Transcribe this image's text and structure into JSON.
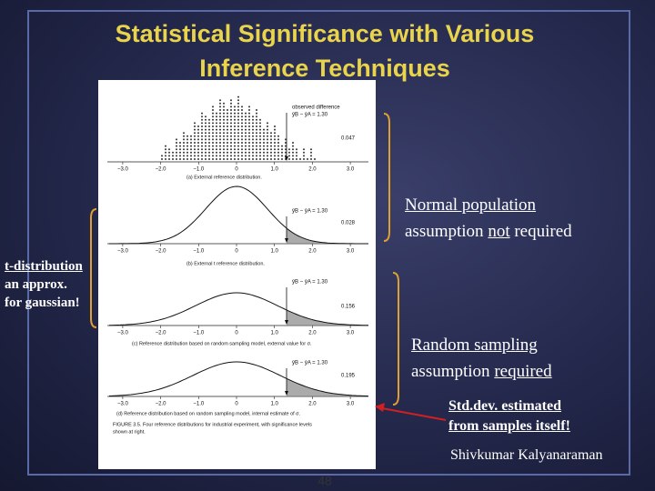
{
  "title": [
    "Statistical Significance with Various",
    "Inference Techniques"
  ],
  "figure": {
    "panels": [
      {
        "note": "observed difference",
        "difference_label": "ȳB − ȳA = 1.30",
        "significance": "0.047",
        "axis_labels": [
          "−3.0",
          "−2.0",
          "−1.0",
          "0",
          "1.0",
          "2.0",
          "3.0"
        ],
        "caption": "(a) External reference distribution."
      },
      {
        "difference_label": "ȳB − ȳA = 1.30",
        "significance": "0.028",
        "axis_labels": [
          "−3.0",
          "−2.0",
          "−1.0",
          "0",
          "1.0",
          "2.0",
          "3.0"
        ],
        "caption": "(b) External t reference distribution."
      },
      {
        "difference_label": "ȳB − ȳA = 1.30",
        "significance": "0.156",
        "axis_labels": [
          "−3.0",
          "−2.0",
          "−1.0",
          "0",
          "1.0",
          "2.0",
          "3.0"
        ],
        "caption": "(c) Reference distribution based on random sampling model, external value for σ."
      },
      {
        "difference_label": "ȳB − ȳA = 1.30",
        "significance": "0.195",
        "axis_labels": [
          "−3.0",
          "−2.0",
          "−1.0",
          "0",
          "1.0",
          "2.0",
          "3.0"
        ],
        "caption": "(d) Reference distribution based on random sampling model, internal estimate of σ."
      }
    ],
    "caption": [
      "FIGURE 3.5. Four reference distributions for industrial experiment, with significance levels",
      "shown at right."
    ]
  },
  "annotations": {
    "normal": {
      "line1": "Normal population",
      "line2": [
        "assumption ",
        "not",
        " required"
      ]
    },
    "t_dist": [
      "t-distribution",
      "an approx.",
      "for gaussian!"
    ],
    "random": {
      "line1": "Random sampling",
      "line2": [
        "assumption ",
        "required"
      ]
    },
    "std_dev": [
      "Std.dev. estimated",
      "from samples itself!"
    ]
  },
  "author": "Shivkumar Kalyanaraman",
  "page_number": 48
}
